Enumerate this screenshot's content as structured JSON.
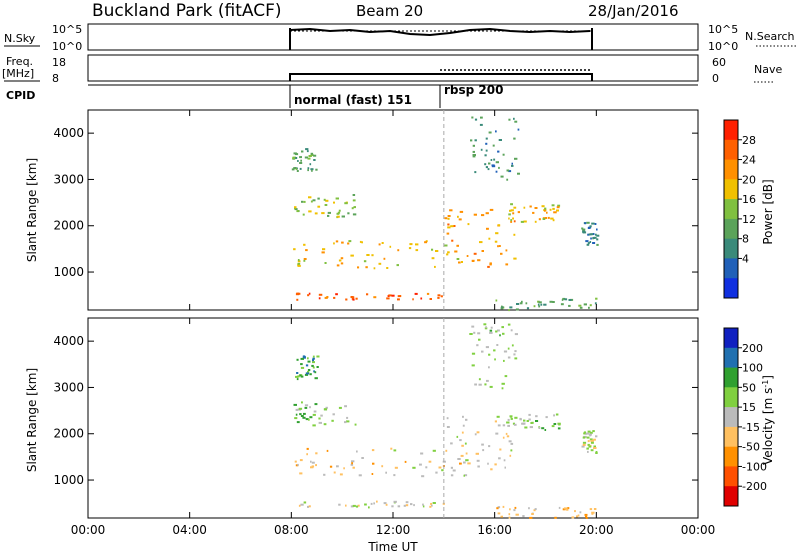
{
  "header": {
    "title": "Buckland Park (fitACF)",
    "beam": "Beam 20",
    "date": "28/Jan/2016"
  },
  "top_panels": {
    "nsky_label": "N.Sky",
    "nsky_ticks": [
      "10^5",
      "10^0"
    ],
    "nsky_right_ticks": [
      "10^5",
      "10^0"
    ],
    "nsearch_label": "N.Search",
    "freq_label": "Freq.",
    "freq_unit": "[MHz]",
    "freq_ticks": [
      "18",
      "8"
    ],
    "nave_ticks": [
      "60",
      "0"
    ],
    "nave_label": "Nave",
    "cpid_label": "CPID",
    "cpid_segments": [
      {
        "label": "normal (fast) 151",
        "start_h": 8,
        "end_h": 14
      },
      {
        "label": "rbsp 200",
        "start_h": 14,
        "end_h": 20
      }
    ]
  },
  "chart_data": [
    {
      "type": "heatmap",
      "title": "",
      "xlabel": "",
      "ylabel": "Slant Range [km]",
      "xlim": [
        0,
        24
      ],
      "ylim": [
        180,
        4500
      ],
      "x_ticks": [
        "00:00",
        "04:00",
        "08:00",
        "12:00",
        "16:00",
        "20:00",
        "00:00"
      ],
      "y_ticks": [
        "1000",
        "2000",
        "3000",
        "4000"
      ],
      "colorbar": {
        "label": "Power [dB]",
        "range": [
          0,
          32
        ],
        "ticks": [
          "28",
          "24",
          "20",
          "16",
          "12",
          "8",
          "4"
        ],
        "colors": [
          "#1030e0",
          "#2060b8",
          "#3a8a7a",
          "#5ba35a",
          "#80c040",
          "#f0c000",
          "#ff9000",
          "#ff6000",
          "#ff2000"
        ]
      },
      "bands": [
        {
          "t0": 8.0,
          "t1": 14.0,
          "r0": 420,
          "r1": 560,
          "value": 28
        },
        {
          "t0": 8.0,
          "t1": 14.6,
          "r0": 1100,
          "r1": 1700,
          "value": 20
        },
        {
          "t0": 8.0,
          "t1": 10.5,
          "r0": 2200,
          "r1": 2700,
          "value": 16
        },
        {
          "t0": 8.0,
          "t1": 9.0,
          "r0": 3200,
          "r1": 3700,
          "value": 12
        },
        {
          "t0": 14.0,
          "t1": 16.8,
          "r0": 1100,
          "r1": 2400,
          "value": 22
        },
        {
          "t0": 16.5,
          "t1": 18.5,
          "r0": 2100,
          "r1": 2500,
          "value": 20
        },
        {
          "t0": 16.0,
          "t1": 20.0,
          "r0": 200,
          "r1": 450,
          "value": 12
        },
        {
          "t0": 15.0,
          "t1": 17.0,
          "r0": 3000,
          "r1": 4400,
          "value": 10
        },
        {
          "t0": 19.4,
          "t1": 20.0,
          "r0": 1600,
          "r1": 2100,
          "value": 8
        }
      ]
    },
    {
      "type": "heatmap",
      "title": "",
      "xlabel": "Time UT",
      "ylabel": "Slant Range [km]",
      "xlim": [
        0,
        24
      ],
      "ylim": [
        180,
        4500
      ],
      "x_ticks": [
        "00:00",
        "04:00",
        "08:00",
        "12:00",
        "16:00",
        "20:00",
        "00:00"
      ],
      "y_ticks": [
        "1000",
        "2000",
        "3000",
        "4000"
      ],
      "colorbar": {
        "label": "Velocity [m s^-1]",
        "range": [
          -250,
          250
        ],
        "ticks": [
          "200",
          "100",
          "50",
          "15",
          "-15",
          "-50",
          "-100",
          "-200"
        ],
        "colors": [
          "#e00000",
          "#ff5000",
          "#ff9000",
          "#ffc060",
          "#bbbbbb",
          "#80d040",
          "#30a030",
          "#2070b0",
          "#1020c0"
        ]
      },
      "bands": [
        {
          "t0": 8.0,
          "t1": 14.0,
          "r0": 420,
          "r1": 560,
          "value": 0
        },
        {
          "t0": 8.0,
          "t1": 14.6,
          "r0": 1100,
          "r1": 1700,
          "value": -30
        },
        {
          "t0": 8.0,
          "t1": 10.5,
          "r0": 2200,
          "r1": 2700,
          "value": 60
        },
        {
          "t0": 8.0,
          "t1": 9.0,
          "r0": 3200,
          "r1": 3700,
          "value": 120
        },
        {
          "t0": 14.0,
          "t1": 16.8,
          "r0": 1100,
          "r1": 2400,
          "value": -20
        },
        {
          "t0": 16.5,
          "t1": 18.5,
          "r0": 2100,
          "r1": 2500,
          "value": 40
        },
        {
          "t0": 16.0,
          "t1": 20.0,
          "r0": 200,
          "r1": 450,
          "value": -60
        },
        {
          "t0": 15.0,
          "t1": 17.0,
          "r0": 3000,
          "r1": 4400,
          "value": 30
        },
        {
          "t0": 19.4,
          "t1": 20.0,
          "r0": 1600,
          "r1": 2100,
          "value": 10
        }
      ]
    }
  ]
}
